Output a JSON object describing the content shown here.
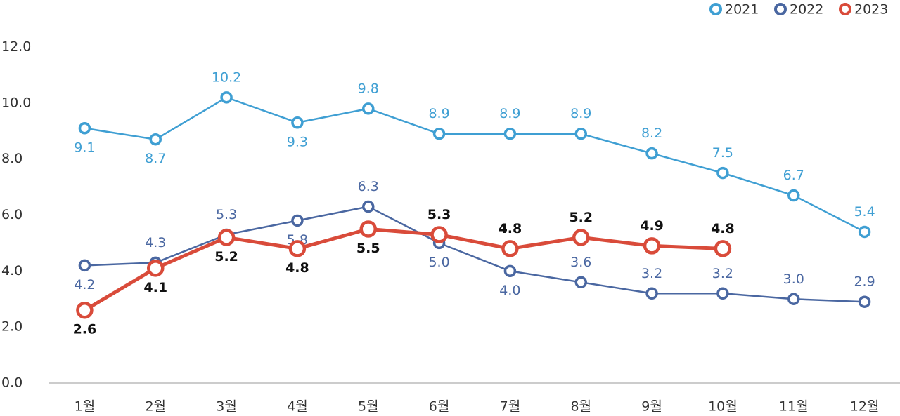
{
  "chart_data": {
    "type": "line",
    "categories": [
      "1월",
      "2월",
      "3월",
      "4월",
      "5월",
      "6월",
      "7월",
      "8월",
      "9월",
      "10월",
      "11월",
      "12월"
    ],
    "series": [
      {
        "name": "2021",
        "color": "#3f9fd3",
        "values": [
          9.1,
          8.7,
          10.2,
          9.3,
          9.8,
          8.9,
          8.9,
          8.9,
          8.2,
          7.5,
          6.7,
          5.4
        ]
      },
      {
        "name": "2022",
        "color": "#4a67a1",
        "values": [
          4.2,
          4.3,
          5.3,
          5.8,
          6.3,
          5.0,
          4.0,
          3.6,
          3.2,
          3.2,
          3.0,
          2.9
        ],
        "value_labels": [
          "4.2",
          "4.3",
          "5.3",
          "5.8",
          "6.3",
          "5.0",
          "4.0",
          "3.6",
          "3.2",
          "3.2",
          "3.0",
          "2.9"
        ]
      },
      {
        "name": "2023",
        "color": "#d94b3a",
        "values": [
          2.6,
          4.1,
          5.2,
          4.8,
          5.5,
          5.3,
          4.8,
          5.2,
          4.9,
          4.8,
          null,
          null
        ]
      }
    ],
    "ylim": [
      0,
      12
    ],
    "yticks": [
      {
        "value": 0,
        "label": "0.0"
      },
      {
        "value": 2,
        "label": "2.0"
      },
      {
        "value": 4,
        "label": "4.0"
      },
      {
        "value": 6,
        "label": "6.0"
      },
      {
        "value": 8,
        "label": "8.0"
      },
      {
        "value": 10,
        "label": "10.0"
      },
      {
        "value": 12,
        "label": "12.0"
      }
    ],
    "legend": "top-right"
  }
}
